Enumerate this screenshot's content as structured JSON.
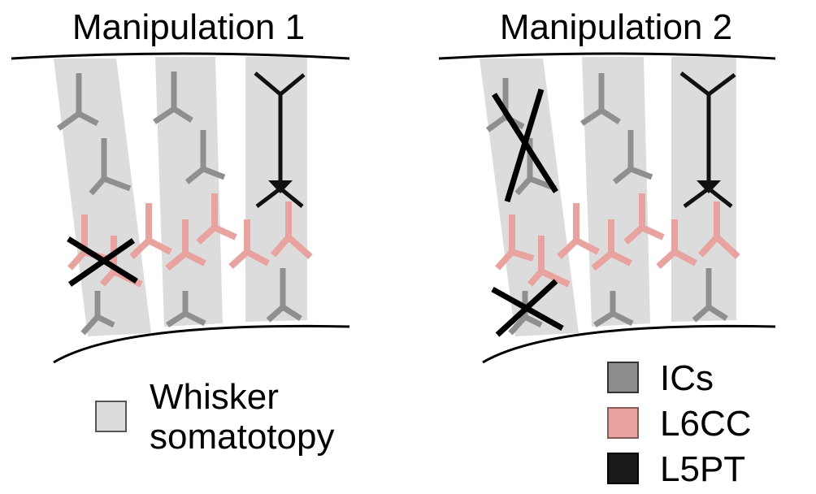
{
  "panels": [
    {
      "title": "Manipulation 1"
    },
    {
      "title": "Manipulation 2"
    }
  ],
  "legend": {
    "somatotopy": {
      "line1": "Whisker",
      "line2": "somatotopy",
      "color": "#dcdcdc"
    },
    "cell_types": [
      {
        "label": "ICs",
        "color": "#8c8c8c"
      },
      {
        "label": "L6CC",
        "color": "#e8a3a0"
      },
      {
        "label": "L5PT",
        "color": "#1a1a1a"
      }
    ]
  },
  "colors": {
    "column": "#dcdcdc",
    "ic": "#8f8f8f",
    "l6cc": "#e8a3a0",
    "l5pt": "#111111",
    "cross": "#000000"
  }
}
